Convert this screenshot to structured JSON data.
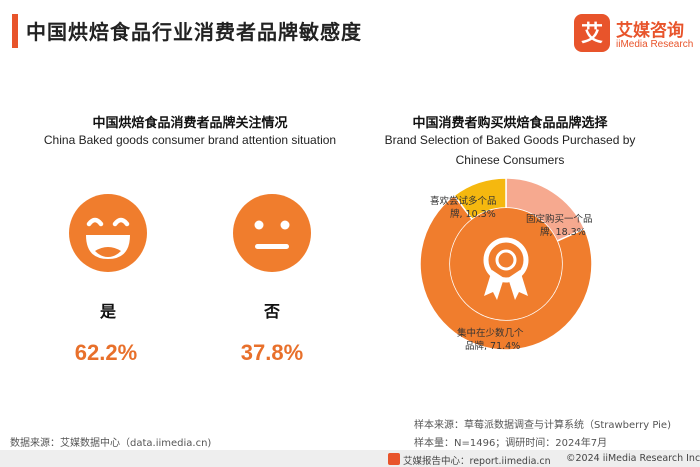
{
  "header": {
    "title": "中国烘焙食品行业消费者品牌敏感度",
    "logo_name": "艾媒咨询",
    "logo_sub": "iiMedia Research",
    "logo_mark_char": "艾"
  },
  "left_panel": {
    "title_zh": "中国烘焙食品消费者品牌关注情况",
    "title_en": "China Baked goods consumer brand attention situation",
    "yes": {
      "label": "是",
      "value": "62.2%",
      "icon": "happy-face-icon"
    },
    "no": {
      "label": "否",
      "value": "37.8%",
      "icon": "neutral-face-icon"
    }
  },
  "right_panel": {
    "title_zh": "中国消费者购买烘焙食品品牌选择",
    "title_en_line1": "Brand Selection of Baked Goods Purchased by",
    "title_en_line2": "Chinese Consumers",
    "center_icon": "award-ribbon-icon",
    "labels": {
      "few": {
        "line1": "集中在少数几个",
        "line2": "品牌, 71.4%"
      },
      "fixed": {
        "line1": "固定购买一个品",
        "line2": "牌, 18.3%"
      },
      "try": {
        "line1": "喜欢尝试多个品",
        "line2": "牌, 10.3%"
      }
    }
  },
  "chart_data": [
    {
      "type": "bar",
      "title": "中国烘焙食品消费者品牌关注情况",
      "subtitle": "China Baked goods consumer brand attention situation",
      "categories": [
        "是",
        "否"
      ],
      "values": [
        62.2,
        37.8
      ],
      "unit": "%"
    },
    {
      "type": "pie",
      "title": "中国消费者购买烘焙食品品牌选择",
      "subtitle": "Brand Selection of Baked Goods Purchased by Chinese Consumers",
      "categories": [
        "集中在少数几个品牌",
        "固定购买一个品牌",
        "喜欢尝试多个品牌"
      ],
      "values": [
        71.4,
        18.3,
        10.3
      ],
      "unit": "%",
      "colors": [
        "#f07d2d",
        "#f6a98f",
        "#f5b80f"
      ]
    }
  ],
  "colors": {
    "accent": "#e8542b",
    "value_orange": "#e8702b",
    "face_orange": "#f07d2d"
  },
  "footer": {
    "source_left": "数据来源：艾媒数据中心（data.iimedia.cn)",
    "sample_source": "样本来源：草莓派数据调查与计算系统（Strawberry Pie)",
    "sample_size": "样本量：N=1496；调研时间：2024年7月",
    "bar_left": "艾媒报告中心：report.iimedia.cn",
    "bar_right": "©2024 iiMedia Research Inc"
  }
}
